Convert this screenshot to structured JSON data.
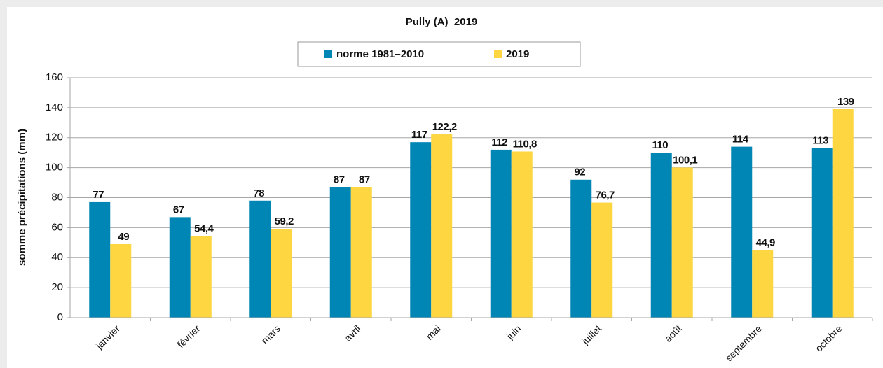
{
  "chart_data": {
    "type": "bar",
    "title": "Pully (A)  2019",
    "y_label": "somme précipitations (mm)",
    "categories": [
      "janvier",
      "février",
      "mars",
      "avril",
      "mai",
      "juin",
      "juillet",
      "août",
      "septembre",
      "octobre"
    ],
    "series": [
      {
        "name": "norme 1981–2010",
        "color": "#0086b4",
        "values": [
          77,
          67,
          78,
          87,
          117,
          112,
          92,
          110,
          114,
          113
        ]
      },
      {
        "name": "2019",
        "color": "#fdd641",
        "values": [
          49,
          54.4,
          59.2,
          87,
          122.2,
          110.8,
          76.7,
          100.1,
          44.9,
          139
        ],
        "value_labels": [
          "49",
          "54,4",
          "59,2",
          "87",
          "122,2",
          "110,8",
          "76,7",
          "100,1",
          "44,9",
          "139"
        ]
      }
    ],
    "ylim": [
      0,
      160
    ],
    "yticks": [
      0,
      20,
      40,
      60,
      80,
      100,
      120,
      140,
      160
    ],
    "grid": true,
    "legend": "top"
  }
}
